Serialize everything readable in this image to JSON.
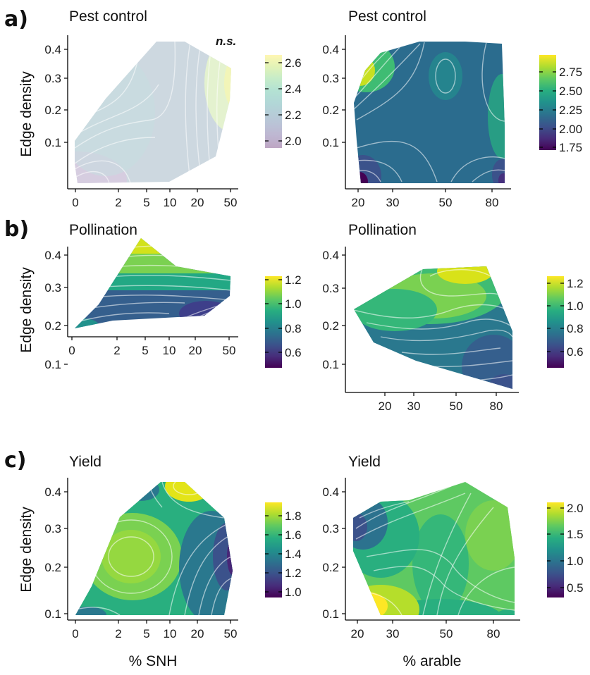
{
  "chart_data": [
    {
      "type": "heatmap",
      "panel_letter": "a)",
      "title": "Pest control",
      "annotation": "n.s.",
      "xlabel": "",
      "ylabel": "Edge density",
      "x_ticks": [
        "0",
        "2",
        "5",
        "10",
        "20",
        "50"
      ],
      "y_ticks": [
        "0.1",
        "0.2",
        "0.3",
        "0.4"
      ],
      "ylim": [
        0.04,
        0.42
      ],
      "legend_ticks": [
        "2.0",
        "2.2",
        "2.4",
        "2.6"
      ],
      "legend_range": [
        1.95,
        2.7
      ],
      "colormap": "viridis",
      "faded": true
    },
    {
      "type": "heatmap",
      "panel_letter": "",
      "title": "Pest control",
      "xlabel": "",
      "ylabel": "",
      "x_ticks": [
        "20",
        "30",
        "50",
        "80"
      ],
      "y_ticks": [
        "0.1",
        "0.2",
        "0.3",
        "0.4"
      ],
      "ylim": [
        0.04,
        0.42
      ],
      "legend_ticks": [
        "2.75",
        "2.50",
        "2.25",
        "2.00",
        "1.75"
      ],
      "legend_range": [
        1.7,
        2.95
      ],
      "colormap": "viridis",
      "faded": false
    },
    {
      "type": "heatmap",
      "panel_letter": "b)",
      "title": "Pollination",
      "xlabel": "",
      "ylabel": "Edge density",
      "x_ticks": [
        "0",
        "2",
        "5",
        "10",
        "20",
        "50"
      ],
      "y_ticks": [
        "0.1",
        "0.2",
        "0.3",
        "0.4"
      ],
      "ylim": [
        0.04,
        0.42
      ],
      "legend_ticks": [
        "1.2",
        "1.0",
        "0.8",
        "0.6"
      ],
      "legend_range": [
        0.5,
        1.25
      ],
      "colormap": "viridis",
      "faded": false
    },
    {
      "type": "heatmap",
      "panel_letter": "",
      "title": "Pollination",
      "xlabel": "",
      "ylabel": "",
      "x_ticks": [
        "20",
        "30",
        "50",
        "80"
      ],
      "y_ticks": [
        "0.1",
        "0.2",
        "0.3",
        "0.4"
      ],
      "ylim": [
        0.04,
        0.42
      ],
      "legend_ticks": [
        "1.2",
        "1.0",
        "0.8",
        "0.6"
      ],
      "legend_range": [
        0.5,
        1.3
      ],
      "colormap": "viridis",
      "faded": false
    },
    {
      "type": "heatmap",
      "panel_letter": "c)",
      "title": "Yield",
      "xlabel": "% SNH",
      "ylabel": "Edge density",
      "x_ticks": [
        "0",
        "2",
        "5",
        "10",
        "20",
        "50"
      ],
      "y_ticks": [
        "0.1",
        "0.2",
        "0.3",
        "0.4"
      ],
      "ylim": [
        0.08,
        0.43
      ],
      "legend_ticks": [
        "1.8",
        "1.6",
        "1.4",
        "1.2",
        "1.0"
      ],
      "legend_range": [
        0.9,
        1.9
      ],
      "colormap": "viridis",
      "faded": false
    },
    {
      "type": "heatmap",
      "panel_letter": "",
      "title": "Yield",
      "xlabel": "% arable",
      "ylabel": "",
      "x_ticks": [
        "20",
        "30",
        "50",
        "80"
      ],
      "y_ticks": [
        "0.1",
        "0.2",
        "0.3",
        "0.4"
      ],
      "ylim": [
        0.08,
        0.43
      ],
      "legend_ticks": [
        "2.0",
        "1.5",
        "1.0",
        "0.5"
      ],
      "legend_range": [
        0.3,
        2.1
      ],
      "colormap": "viridis",
      "faded": false
    }
  ]
}
